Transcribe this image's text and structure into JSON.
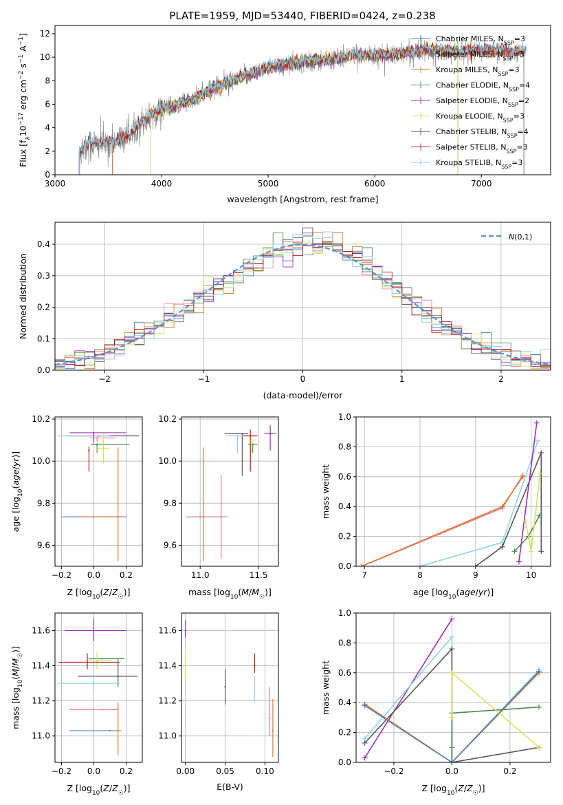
{
  "colors": {
    "Chabrier MILES": "#4a7fc1",
    "Salpeter MILES": "#e8839b",
    "Kroupa MILES": "#e07a2e",
    "Chabrier ELODIE": "#4e8a4e",
    "Salpeter ELODIE": "#9b30b5",
    "Kroupa ELODIE": "#d6e35a",
    "Chabrier STELIB": "#555555",
    "Salpeter STELIB": "#b51f1f",
    "Kroupa STELIB": "#8fd3e0",
    "data": "#808080",
    "normal": "#5b8fd9"
  },
  "chart_data": [
    {
      "id": "spectrum",
      "type": "line",
      "title": "PLATE=1959, MJD=53440, FIBERID=0424, z=0.238",
      "xlabel": "wavelength [Angstrom, rest frame]",
      "ylabel_parts": [
        "Flux [f",
        "λ",
        "10",
        "−17",
        " erg cm",
        "−2",
        " s",
        "−1",
        " A",
        "−1",
        "]"
      ],
      "xlim": [
        3000,
        7650
      ],
      "ylim": [
        0,
        12.7
      ],
      "xticks": [
        3000,
        4000,
        5000,
        6000,
        7000
      ],
      "yticks": [
        0,
        2,
        4,
        6,
        8,
        10,
        12
      ],
      "x": [
        3230,
        3300,
        3400,
        3500,
        3600,
        3700,
        3800,
        3900,
        4000,
        4100,
        4200,
        4300,
        4400,
        4500,
        4600,
        4700,
        4800,
        4900,
        5000,
        5200,
        5400,
        5600,
        5800,
        6000,
        6200,
        6400,
        6600,
        6800,
        7000,
        7200,
        7400
      ],
      "y": [
        2.1,
        2.6,
        2.6,
        2.7,
        2.9,
        3.4,
        4.4,
        5.1,
        5.6,
        5.8,
        6.1,
        6.4,
        6.9,
        7.4,
        7.8,
        8.1,
        8.5,
        8.8,
        9.1,
        9.4,
        9.7,
        9.8,
        10.2,
        10.2,
        10.2,
        10.5,
        10.6,
        10.5,
        10.6,
        10.5,
        10.5
      ],
      "legend": [
        {
          "name": "Chabrier MILES",
          "label": "Chabrier MILES, N",
          "sub": "SSP",
          "tail": "=3"
        },
        {
          "name": "Salpeter MILES",
          "label": "Salpeter MILES, N",
          "sub": "SSP",
          "tail": "=3"
        },
        {
          "name": "Kroupa MILES",
          "label": "Kroupa MILES, N",
          "sub": "SSP",
          "tail": "=3"
        },
        {
          "name": "Chabrier ELODIE",
          "label": "Chabrier ELODIE, N",
          "sub": "SSP",
          "tail": "=4"
        },
        {
          "name": "Salpeter ELODIE",
          "label": "Salpeter ELODIE, N",
          "sub": "SSP",
          "tail": "=2"
        },
        {
          "name": "Kroupa ELODIE",
          "label": "Kroupa ELODIE, N",
          "sub": "SSP",
          "tail": "=3"
        },
        {
          "name": "Chabrier STELIB",
          "label": "Chabrier STELIB, N",
          "sub": "SSP",
          "tail": "=4"
        },
        {
          "name": "Salpeter STELIB",
          "label": "Salpeter STELIB, N",
          "sub": "SSP",
          "tail": "=3"
        },
        {
          "name": "Kroupa STELIB",
          "label": "Kroupa STELIB, N",
          "sub": "SSP",
          "tail": "=3"
        }
      ],
      "legend_placement": "upper-right"
    },
    {
      "id": "residuals",
      "type": "line",
      "xlabel": "(data-model)/error",
      "ylabel": "Normed distribution",
      "xlim": [
        -2.5,
        2.5
      ],
      "ylim": [
        0,
        0.47
      ],
      "xticks": [
        -2,
        -1,
        0,
        1,
        2
      ],
      "yticks": [
        0.0,
        0.1,
        0.2,
        0.3,
        0.4
      ],
      "grid": true,
      "legend": [
        {
          "name": "normal",
          "label": "N(0,1)"
        }
      ],
      "legend_placement": "upper-right",
      "bin_width": 0.1
    },
    {
      "id": "z-age",
      "type": "scatter",
      "xlabel": "Z [log10(Z/Z☉)]",
      "ylabel": "age [log10(age/yr)]",
      "xlim": [
        -0.24,
        0.3
      ],
      "ylim": [
        9.5,
        10.21
      ],
      "xticks": [
        -0.2,
        0.0,
        0.2
      ],
      "yticks": [
        9.6,
        9.8,
        10.0,
        10.2
      ],
      "grid": true,
      "points": [
        {
          "series": "Chabrier MILES",
          "x": 0.0,
          "y": 9.735,
          "xerr": [
            0.2,
            0.2
          ],
          "yerr": [
            0.0,
            0.0
          ]
        },
        {
          "series": "Kroupa MILES",
          "x": 0.15,
          "y": 9.735,
          "xerr": [
            0.24,
            0.02
          ],
          "yerr": [
            0.21,
            0.33
          ]
        },
        {
          "series": "Salpeter MILES",
          "x": 0.02,
          "y": 10.11,
          "xerr": [
            0.05,
            0.12
          ],
          "yerr": [
            0.02,
            0.0
          ]
        },
        {
          "series": "Chabrier STELIB",
          "x": 0.03,
          "y": 10.12,
          "xerr": [
            0.2,
            0.25
          ],
          "yerr": [
            0.0,
            0.0
          ]
        },
        {
          "series": "Kroupa STELIB",
          "x": 0.0,
          "y": 10.12,
          "xerr": [
            0.22,
            0.1
          ],
          "yerr": [
            0.0,
            0.0
          ]
        },
        {
          "series": "Salpeter ELODIE",
          "x": 0.0,
          "y": 10.135,
          "xerr": [
            0.15,
            0.2
          ],
          "yerr": [
            0.05,
            0.0
          ]
        },
        {
          "series": "Chabrier ELODIE",
          "x": 0.02,
          "y": 10.08,
          "xerr": [
            0.04,
            0.2
          ],
          "yerr": [
            0.04,
            0.0
          ]
        },
        {
          "series": "Kroupa ELODIE",
          "x": 0.06,
          "y": 10.06,
          "xerr": [
            0.04,
            0.04
          ],
          "yerr": [
            0.07,
            0.07
          ]
        },
        {
          "series": "Salpeter STELIB",
          "x": -0.03,
          "y": 10.05,
          "xerr": [
            0.0,
            0.0
          ],
          "yerr": [
            0.1,
            0.02
          ]
        }
      ]
    },
    {
      "id": "mass-age",
      "type": "scatter",
      "xlabel": "mass [log10(M/M☉)]",
      "xlim": [
        10.84,
        11.67
      ],
      "ylim": [
        9.5,
        10.21
      ],
      "xticks": [
        11.0,
        11.5
      ],
      "yticks": [
        9.6,
        9.8,
        10.0,
        10.2
      ],
      "grid": true,
      "points": [
        {
          "series": "Kroupa MILES",
          "x": 11.03,
          "y": 9.735,
          "xerr": [
            0.0,
            0.0
          ],
          "yerr": [
            0.21,
            0.33
          ]
        },
        {
          "series": "Chabrier MILES",
          "x": 11.0,
          "y": 9.735,
          "xerr": [
            0.12,
            0.22
          ],
          "yerr": [
            0.0,
            0.0
          ]
        },
        {
          "series": "Salpeter MILES",
          "x": 11.18,
          "y": 9.735,
          "xerr": [
            0.3,
            0.06
          ],
          "yerr": [
            0.2,
            0.2
          ]
        },
        {
          "series": "Chabrier STELIB",
          "x": 11.36,
          "y": 10.13,
          "xerr": [
            0.15,
            0.05
          ],
          "yerr": [
            0.2,
            0.0
          ]
        },
        {
          "series": "Kroupa STELIB",
          "x": 11.32,
          "y": 10.12,
          "xerr": [
            0.1,
            0.05
          ],
          "yerr": [
            0.08,
            0.0
          ]
        },
        {
          "series": "Salpeter STELIB",
          "x": 11.43,
          "y": 10.12,
          "xerr": [
            0.06,
            0.06
          ],
          "yerr": [
            0.17,
            0.03
          ]
        },
        {
          "series": "Chabrier ELODIE",
          "x": 11.45,
          "y": 10.08,
          "xerr": [
            0.04,
            0.04
          ],
          "yerr": [
            0.04,
            0.0
          ]
        },
        {
          "series": "Kroupa ELODIE",
          "x": 11.44,
          "y": 10.1,
          "xerr": [
            0.04,
            0.04
          ],
          "yerr": [
            0.07,
            0.0
          ]
        },
        {
          "series": "Salpeter ELODIE",
          "x": 11.6,
          "y": 10.13,
          "xerr": [
            0.05,
            0.05
          ],
          "yerr": [
            0.08,
            0.04
          ]
        }
      ]
    },
    {
      "id": "age-weight",
      "type": "line",
      "xlabel": "age [log10(age/yr)]",
      "ylabel": "mass weight",
      "xlim": [
        6.85,
        10.35
      ],
      "ylim": [
        0,
        1.0
      ],
      "xticks": [
        7,
        8,
        9,
        10
      ],
      "yticks": [
        0.0,
        0.2,
        0.4,
        0.6,
        0.8,
        1.0
      ],
      "grid": true,
      "series": [
        {
          "name": "Chabrier MILES",
          "x": [
            6.95,
            9.48,
            9.85
          ],
          "y": [
            0.0,
            0.39,
            0.61
          ]
        },
        {
          "name": "Salpeter MILES",
          "x": [
            6.95,
            9.48,
            9.85
          ],
          "y": [
            0.0,
            0.39,
            0.61
          ]
        },
        {
          "name": "Kroupa MILES",
          "x": [
            6.95,
            9.48,
            9.85
          ],
          "y": [
            0.0,
            0.4,
            0.6
          ]
        },
        {
          "name": "Kroupa STELIB",
          "x": [
            8.0,
            9.48,
            10.12
          ],
          "y": [
            0.0,
            0.16,
            0.84
          ]
        },
        {
          "name": "Chabrier STELIB",
          "x": [
            9.0,
            9.48,
            10.18,
            10.18
          ],
          "y": [
            0.0,
            0.13,
            0.76,
            0.1
          ]
        },
        {
          "name": "Salpeter ELODIE",
          "x": [
            9.78,
            10.1
          ],
          "y": [
            0.03,
            0.96
          ]
        },
        {
          "name": "Chabrier ELODIE",
          "x": [
            9.7,
            9.95,
            10.15
          ],
          "y": [
            0.1,
            0.2,
            0.34
          ]
        },
        {
          "name": "Kroupa ELODIE",
          "x": [
            9.9,
            10.0,
            10.16
          ],
          "y": [
            0.3,
            0.1,
            0.62
          ]
        }
      ]
    },
    {
      "id": "z-mass",
      "type": "scatter",
      "xlabel": "Z [log10(Z/Z☉)]",
      "ylabel": "mass [log10(M/M☉)]",
      "xlim": [
        -0.24,
        0.3
      ],
      "ylim": [
        10.85,
        11.7
      ],
      "xticks": [
        -0.2,
        0.0,
        0.2
      ],
      "yticks": [
        11.0,
        11.2,
        11.4,
        11.6
      ],
      "grid": true,
      "points": [
        {
          "series": "Salpeter ELODIE",
          "x": 0.0,
          "y": 11.6,
          "xerr": [
            0.18,
            0.2
          ],
          "yerr": [
            0.06,
            0.07
          ]
        },
        {
          "series": "Chabrier ELODIE",
          "x": 0.05,
          "y": 11.44,
          "xerr": [
            0.08,
            0.14
          ],
          "yerr": [
            0.0,
            0.0
          ]
        },
        {
          "series": "Kroupa ELODIE",
          "x": 0.02,
          "y": 11.43,
          "xerr": [
            0.06,
            0.1
          ],
          "yerr": [
            0.05,
            0.05
          ]
        },
        {
          "series": "Salpeter STELIB",
          "x": -0.04,
          "y": 11.42,
          "xerr": [
            0.18,
            0.2
          ],
          "yerr": [
            0.04,
            0.05
          ]
        },
        {
          "series": "Chabrier STELIB",
          "x": 0.15,
          "y": 11.34,
          "xerr": [
            0.25,
            0.12
          ],
          "yerr": [
            0.06,
            0.1
          ]
        },
        {
          "series": "Kroupa STELIB",
          "x": 0.0,
          "y": 11.3,
          "xerr": [
            0.22,
            0.16
          ],
          "yerr": [
            0.05,
            0.05
          ]
        },
        {
          "series": "Salpeter MILES",
          "x": 0.05,
          "y": 11.15,
          "xerr": [
            0.2,
            0.1
          ],
          "yerr": [
            0.0,
            0.0
          ]
        },
        {
          "series": "Chabrier MILES",
          "x": 0.1,
          "y": 11.03,
          "xerr": [
            0.25,
            0.07
          ],
          "yerr": [
            0.0,
            0.0
          ]
        },
        {
          "series": "Kroupa MILES",
          "x": 0.15,
          "y": 11.03,
          "xerr": [
            0.02,
            0.02
          ],
          "yerr": [
            0.14,
            0.16
          ]
        }
      ]
    },
    {
      "id": "ebv-mass",
      "type": "scatter",
      "xlabel": "E(B-V)",
      "xlim": [
        -0.005,
        0.117
      ],
      "ylim": [
        10.85,
        11.7
      ],
      "xticks": [
        0.0,
        0.05,
        0.1
      ],
      "yticks": [
        11.0,
        11.2,
        11.4,
        11.6
      ],
      "grid": true,
      "points": [
        {
          "series": "Salpeter ELODIE",
          "x": 0.0,
          "y": 11.6,
          "yerr": [
            0.04,
            0.06
          ]
        },
        {
          "series": "Kroupa ELODIE",
          "x": 0.0,
          "y": 11.42,
          "yerr": [
            0.1,
            0.07
          ]
        },
        {
          "series": "Chabrier STELIB",
          "x": 0.05,
          "y": 11.28,
          "yerr": [
            0.1,
            0.1
          ]
        },
        {
          "series": "Kroupa STELIB",
          "x": 0.087,
          "y": 11.24,
          "yerr": [
            0.05,
            0.1
          ]
        },
        {
          "series": "Salpeter STELIB",
          "x": 0.087,
          "y": 11.4,
          "yerr": [
            0.04,
            0.07
          ]
        },
        {
          "series": "Salpeter MILES",
          "x": 0.106,
          "y": 11.1,
          "yerr": [
            0.1,
            0.18
          ]
        },
        {
          "series": "Kroupa MILES",
          "x": 0.11,
          "y": 11.03,
          "yerr": [
            0.15,
            0.18
          ]
        }
      ]
    },
    {
      "id": "z-weight",
      "type": "line",
      "xlabel": "Z [log10(Z/Z☉)]",
      "ylabel": "mass weight",
      "xlim": [
        -0.33,
        0.34
      ],
      "ylim": [
        0,
        1.0
      ],
      "xticks": [
        -0.2,
        0.0,
        0.2
      ],
      "yticks": [
        0.0,
        0.2,
        0.4,
        0.6,
        0.8,
        1.0
      ],
      "grid": true,
      "series": [
        {
          "name": "Salpeter ELODIE",
          "x": [
            -0.3,
            0.0
          ],
          "y": [
            0.03,
            0.96
          ]
        },
        {
          "name": "Kroupa STELIB",
          "x": [
            -0.3,
            0.0,
            0.0,
            0.3
          ],
          "y": [
            0.16,
            0.84,
            0.0,
            0.62
          ]
        },
        {
          "name": "Chabrier STELIB",
          "x": [
            -0.3,
            0.0,
            0.0,
            0.3
          ],
          "y": [
            0.13,
            0.76,
            0.0,
            0.1
          ]
        },
        {
          "name": "Kroupa MILES",
          "x": [
            -0.3,
            0.0,
            0.0,
            0.3
          ],
          "y": [
            0.39,
            0.0,
            0.0,
            0.6
          ]
        },
        {
          "name": "Chabrier MILES",
          "x": [
            -0.3,
            0.0,
            0.0,
            0.3
          ],
          "y": [
            0.38,
            0.0,
            0.0,
            0.61
          ]
        },
        {
          "name": "Chabrier ELODIE",
          "x": [
            0.0,
            0.0,
            0.3
          ],
          "y": [
            0.1,
            0.33,
            0.37
          ]
        },
        {
          "name": "Kroupa ELODIE",
          "x": [
            0.0,
            0.0,
            0.3
          ],
          "y": [
            0.3,
            0.6,
            0.1
          ]
        }
      ]
    }
  ]
}
